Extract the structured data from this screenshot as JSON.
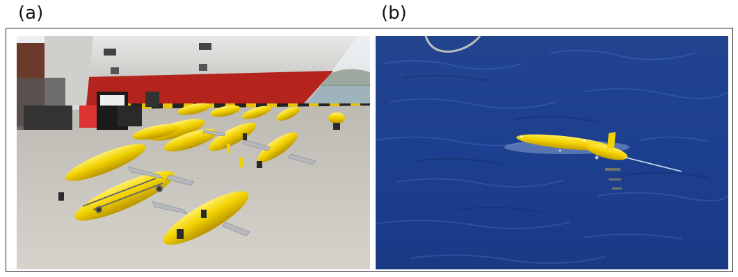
{
  "panels": [
    {
      "label": "(a)",
      "description_icon": "dockside-gliders-photo"
    },
    {
      "label": "(b)",
      "description_icon": "glider-at-sea-photo"
    }
  ],
  "colors": {
    "glider_yellow": "#f2d200",
    "sea_blue": "#1c3f8f",
    "ship_red": "#b4231c",
    "deck_gray": "#c9c6bf"
  }
}
